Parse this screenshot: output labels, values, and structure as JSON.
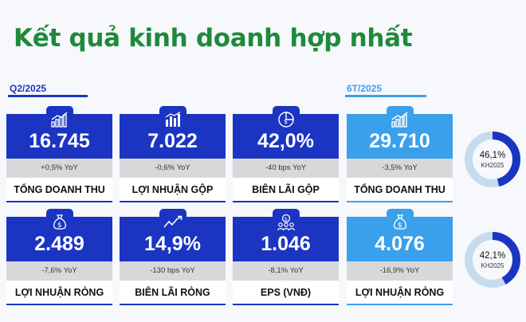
{
  "title": "Kết quả kinh doanh hợp nhất",
  "colors": {
    "title_green": "#1d8a3c",
    "dark_blue": "#1b35c2",
    "light_blue": "#3aa0ec",
    "gray": "#d7d8da",
    "donut_track": "#c7dbee"
  },
  "periods": {
    "q2": "Q2/2025",
    "h1": "6T/2025"
  },
  "q2_cards": [
    {
      "icon": "bar-chart-up-icon",
      "value": "16.745",
      "change": "+0,5% YoY",
      "label": "TỔNG DOANH THU"
    },
    {
      "icon": "bar-chart-icon",
      "value": "7.022",
      "change": "-0,6% YoY",
      "label": "LỢI NHUẬN GỘP"
    },
    {
      "icon": "pie-money-icon",
      "value": "42,0%",
      "change": "-40 bps YoY",
      "label": "BIÊN LÃI GỘP"
    },
    {
      "icon": "money-bag-icon",
      "value": "2.489",
      "change": "-7,6% YoY",
      "label": "LỢI NHUẬN RÒNG"
    },
    {
      "icon": "trend-line-icon",
      "value": "14,9%",
      "change": "-130 bps YoY",
      "label": "BIÊN LÃI RÒNG"
    },
    {
      "icon": "shareholders-icon",
      "value": "1.046",
      "change": "-8,1% YoY",
      "label": "EPS (VNĐ)"
    }
  ],
  "h1_cards": [
    {
      "icon": "bar-chart-up-icon",
      "value": "29.710",
      "change": "-3,5% YoY",
      "label": "TỔNG DOANH THU"
    },
    {
      "icon": "money-bag-icon",
      "value": "4.076",
      "change": "-16,9% YoY",
      "label": "LỢI NHUẬN RÒNG"
    }
  ],
  "donuts": [
    {
      "percent_text": "46,1%",
      "fraction": 0.461,
      "sub": "KH2025"
    },
    {
      "percent_text": "42,1%",
      "fraction": 0.421,
      "sub": "KH2025"
    }
  ]
}
